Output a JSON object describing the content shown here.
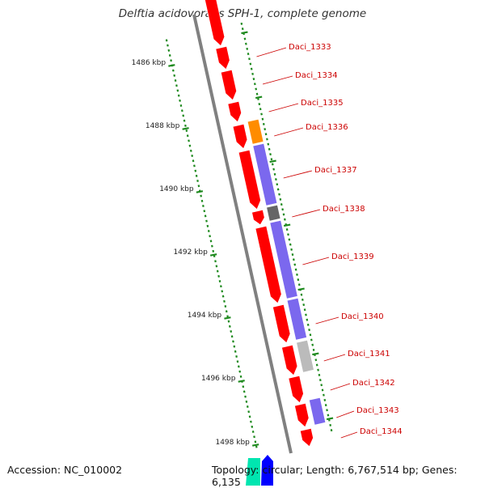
{
  "title": "Delftia acidovorans SPH-1, complete genome",
  "footer": {
    "accession": "Accession: NC_010002",
    "topology": "Topology: circular; Length: 6,767,514 bp; Genes: 6,135"
  },
  "colors": {
    "backbone": "#808080",
    "tick": "#1f8a1f",
    "label": "#cc0000",
    "forward_cds": "#ff0000",
    "orange_feature": "#ff8c00",
    "purple_feature": "#7b68ee",
    "dark_gray_feature": "#666666",
    "light_gray_feature": "#bbbbbb",
    "blue_feature": "#0000ff",
    "cyan_feature": "#00e5b0"
  },
  "scale_labels": [
    "1486 kbp",
    "1488 kbp",
    "1490 kbp",
    "1492 kbp",
    "1494 kbp",
    "1496 kbp",
    "1498 kbp"
  ],
  "gene_labels": [
    "Daci_1333",
    "Daci_1334",
    "Daci_1335",
    "Daci_1336",
    "Daci_1337",
    "Daci_1338",
    "Daci_1339",
    "Daci_1340",
    "Daci_1341",
    "Daci_1342",
    "Daci_1343",
    "Daci_1344"
  ]
}
